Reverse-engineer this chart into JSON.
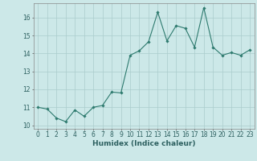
{
  "x": [
    0,
    1,
    2,
    3,
    4,
    5,
    6,
    7,
    8,
    9,
    10,
    11,
    12,
    13,
    14,
    15,
    16,
    17,
    18,
    19,
    20,
    21,
    22,
    23
  ],
  "y": [
    11.0,
    10.9,
    10.4,
    10.2,
    10.85,
    10.5,
    11.0,
    11.1,
    11.85,
    11.8,
    13.9,
    14.15,
    14.65,
    16.3,
    14.7,
    15.55,
    15.4,
    14.35,
    16.55,
    14.35,
    13.9,
    14.05,
    13.9,
    14.2
  ],
  "line_color": "#2d7a6e",
  "marker": "D",
  "marker_size": 1.8,
  "bg_color": "#cce8e8",
  "grid_color": "#aacccc",
  "xlabel": "Humidex (Indice chaleur)",
  "ylim": [
    9.8,
    16.8
  ],
  "xlim": [
    -0.5,
    23.5
  ],
  "yticks": [
    10,
    11,
    12,
    13,
    14,
    15,
    16
  ],
  "xticks": [
    0,
    1,
    2,
    3,
    4,
    5,
    6,
    7,
    8,
    9,
    10,
    11,
    12,
    13,
    14,
    15,
    16,
    17,
    18,
    19,
    20,
    21,
    22,
    23
  ],
  "tick_fontsize": 5.5,
  "label_fontsize": 6.5
}
